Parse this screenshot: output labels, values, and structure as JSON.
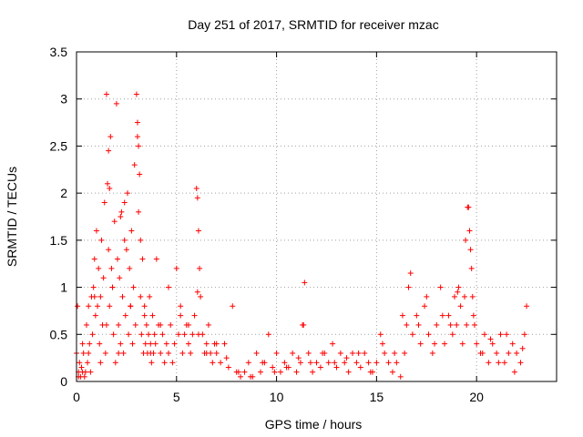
{
  "chart_data": {
    "type": "scatter",
    "title": "Day 251 of 2017, SRMTID for receiver mzac",
    "xlabel": "GPS time / hours",
    "ylabel": "SRMTID / TECUs",
    "xlim": [
      0,
      24
    ],
    "ylim": [
      0,
      3.5
    ],
    "xticks": [
      0,
      5,
      10,
      15,
      20
    ],
    "xtick_labels": [
      "0",
      "5",
      "10",
      "15",
      "20"
    ],
    "yticks": [
      0,
      0.5,
      1,
      1.5,
      2,
      2.5,
      3,
      3.5
    ],
    "ytick_labels": [
      "0",
      "0.5",
      "1",
      "1.5",
      "2",
      "2.5",
      "3",
      "3.5"
    ],
    "grid": true,
    "marker": "+",
    "color": "#ff0000",
    "series": [
      {
        "name": "SRMTID",
        "x": [
          0.0,
          0.05,
          0.1,
          0.15,
          0.2,
          0.25,
          0.3,
          0.35,
          0.4,
          0.45,
          0.5,
          0.55,
          0.6,
          0.65,
          0.7,
          0.75,
          0.8,
          0.85,
          0.9,
          0.95,
          1.0,
          1.05,
          1.1,
          1.15,
          1.2,
          1.25,
          1.3,
          1.35,
          1.4,
          1.45,
          1.5,
          1.55,
          1.6,
          1.65,
          1.7,
          1.75,
          1.8,
          1.85,
          1.9,
          1.95,
          2.0,
          2.05,
          2.1,
          2.15,
          2.2,
          2.25,
          2.3,
          2.35,
          2.4,
          2.45,
          2.5,
          2.55,
          2.6,
          2.65,
          2.7,
          2.75,
          2.8,
          2.85,
          2.9,
          2.95,
          3.0,
          3.05,
          3.1,
          3.15,
          3.2,
          3.25,
          3.3,
          3.35,
          3.4,
          3.45,
          3.5,
          3.55,
          3.6,
          3.65,
          3.7,
          3.75,
          3.8,
          3.85,
          3.9,
          3.95,
          4.0,
          4.1,
          4.2,
          4.3,
          4.4,
          4.5,
          4.6,
          4.7,
          4.8,
          4.9,
          5.0,
          5.1,
          5.2,
          5.3,
          5.4,
          5.5,
          5.6,
          5.7,
          5.8,
          5.9,
          6.0,
          6.05,
          6.1,
          6.15,
          6.2,
          6.3,
          6.4,
          6.5,
          6.6,
          6.7,
          6.8,
          6.9,
          7.0,
          7.2,
          7.4,
          7.6,
          7.8,
          8.0,
          8.2,
          8.4,
          8.6,
          8.8,
          9.0,
          9.2,
          9.4,
          9.6,
          9.8,
          10.0,
          10.2,
          10.4,
          10.6,
          10.8,
          11.0,
          11.2,
          11.3,
          11.4,
          11.6,
          11.8,
          12.0,
          12.2,
          12.4,
          12.6,
          12.8,
          13.0,
          13.2,
          13.4,
          13.6,
          13.8,
          14.0,
          14.2,
          14.4,
          14.6,
          14.8,
          15.0,
          15.2,
          15.4,
          15.6,
          15.8,
          16.0,
          16.2,
          16.4,
          16.5,
          16.6,
          16.8,
          17.0,
          17.2,
          17.4,
          17.6,
          17.8,
          18.0,
          18.2,
          18.4,
          18.6,
          18.8,
          18.9,
          19.0,
          19.1,
          19.2,
          19.3,
          19.4,
          19.5,
          19.6,
          19.65,
          19.7,
          19.75,
          19.8,
          19.9,
          20.0,
          20.2,
          20.4,
          20.6,
          20.8,
          21.0,
          21.2,
          21.4,
          21.6,
          21.8,
          22.0,
          22.2,
          22.4,
          0.1,
          0.3,
          0.6,
          0.9,
          1.2,
          1.5,
          1.65,
          1.8,
          2.1,
          2.4,
          2.7,
          3.05,
          3.2,
          3.4,
          3.7,
          4.2,
          4.6,
          5.2,
          5.6,
          6.1,
          6.5,
          7.0,
          7.5,
          8.1,
          8.7,
          9.3,
          9.9,
          10.5,
          11.1,
          11.35,
          11.7,
          12.3,
          12.9,
          13.5,
          14.1,
          14.7,
          15.3,
          15.9,
          16.3,
          16.7,
          17.1,
          17.5,
          17.9,
          18.3,
          18.7,
          19.05,
          19.45,
          19.55,
          19.85,
          20.3,
          20.7,
          21.1,
          21.5,
          21.9,
          22.3,
          22.5,
          1.6,
          2.2,
          3.1,
          6.05
        ],
        "y": [
          0.3,
          0.8,
          0.1,
          0.2,
          0.05,
          0.15,
          0.1,
          0.3,
          0.05,
          0.1,
          0.6,
          0.2,
          0.8,
          0.4,
          0.1,
          0.9,
          0.5,
          1.0,
          1.3,
          0.7,
          1.6,
          0.8,
          1.2,
          0.4,
          0.9,
          1.5,
          0.6,
          1.1,
          1.9,
          0.3,
          3.05,
          2.1,
          1.4,
          0.8,
          2.6,
          1.2,
          1.0,
          0.5,
          1.7,
          0.2,
          2.95,
          1.3,
          0.6,
          1.1,
          0.4,
          1.8,
          0.9,
          0.3,
          1.5,
          0.7,
          1.4,
          2.0,
          0.5,
          1.2,
          0.8,
          1.6,
          0.4,
          1.0,
          2.3,
          0.6,
          3.05,
          2.6,
          1.8,
          2.2,
          0.9,
          0.5,
          1.3,
          0.3,
          0.8,
          0.4,
          0.6,
          0.3,
          0.5,
          0.9,
          0.4,
          0.2,
          0.7,
          0.3,
          0.5,
          0.4,
          1.3,
          0.6,
          0.3,
          0.5,
          0.2,
          0.4,
          0.3,
          0.6,
          0.2,
          0.4,
          1.2,
          0.5,
          0.7,
          0.3,
          0.5,
          0.6,
          0.4,
          0.3,
          0.5,
          0.7,
          2.05,
          1.95,
          1.6,
          1.2,
          0.9,
          0.5,
          0.3,
          0.4,
          0.6,
          0.3,
          0.2,
          0.4,
          0.3,
          0.2,
          0.4,
          0.15,
          0.8,
          0.1,
          0.05,
          0.1,
          0.2,
          0.05,
          0.3,
          0.1,
          0.2,
          0.5,
          0.15,
          0.3,
          0.1,
          0.2,
          0.15,
          0.3,
          0.1,
          0.2,
          0.6,
          1.05,
          0.3,
          0.1,
          0.2,
          0.15,
          0.3,
          0.2,
          0.4,
          0.15,
          0.3,
          0.2,
          0.1,
          0.3,
          0.2,
          0.15,
          0.3,
          0.2,
          0.1,
          0.2,
          0.5,
          0.3,
          0.2,
          0.1,
          0.2,
          0.05,
          0.3,
          0.6,
          1.0,
          0.5,
          0.7,
          0.4,
          0.8,
          0.5,
          0.3,
          0.6,
          1.0,
          0.4,
          0.7,
          0.5,
          0.9,
          0.6,
          1.0,
          0.8,
          0.4,
          0.9,
          0.6,
          1.85,
          1.6,
          1.4,
          1.2,
          0.9,
          0.6,
          0.4,
          0.3,
          0.5,
          0.2,
          0.4,
          0.3,
          0.5,
          0.2,
          0.3,
          0.4,
          0.3,
          0.2,
          0.5,
          0.05,
          0.4,
          0.3,
          0.9,
          0.2,
          0.6,
          2.05,
          1.0,
          0.3,
          1.9,
          0.8,
          2.75,
          1.5,
          0.7,
          0.3,
          0.6,
          1.0,
          0.8,
          0.6,
          0.5,
          0.3,
          0.4,
          0.25,
          0.1,
          0.05,
          0.2,
          0.1,
          0.15,
          0.25,
          0.6,
          0.2,
          0.3,
          0.2,
          0.25,
          0.3,
          0.1,
          0.4,
          0.3,
          0.7,
          1.15,
          0.6,
          0.9,
          0.4,
          0.7,
          0.6,
          0.95,
          1.5,
          1.85,
          0.7,
          0.3,
          0.45,
          0.2,
          0.5,
          0.1,
          0.35,
          0.8,
          2.45,
          1.75,
          2.5,
          0.95
        ]
      }
    ]
  }
}
